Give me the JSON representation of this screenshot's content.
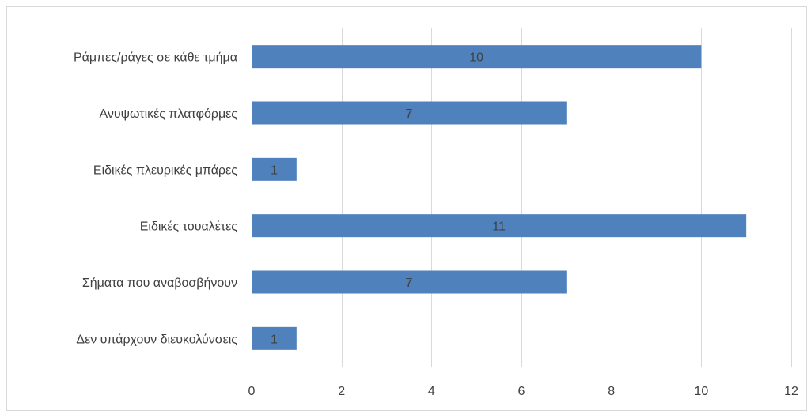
{
  "chart_data": {
    "type": "bar",
    "orientation": "horizontal",
    "categories": [
      "Ράμπες/ράγες σε κάθε τμήμα",
      "Ανυψωτικές πλατφόρμες",
      "Ειδικές πλευρικές μπάρες",
      "Ειδικές τουαλέτες",
      "Σήματα που αναβοσβήνουν",
      "Δεν υπάρχουν διευκολύνσεις"
    ],
    "values": [
      10,
      7,
      1,
      11,
      7,
      1
    ],
    "xlim": [
      0,
      12
    ],
    "xticks": [
      0,
      2,
      4,
      6,
      8,
      10,
      12
    ],
    "grid": "vertical",
    "data_labels": "inside-center",
    "legend": "none",
    "bar_color": "#4f81bd",
    "grid_color": "#d9d9d9",
    "text_color": "#404040"
  }
}
